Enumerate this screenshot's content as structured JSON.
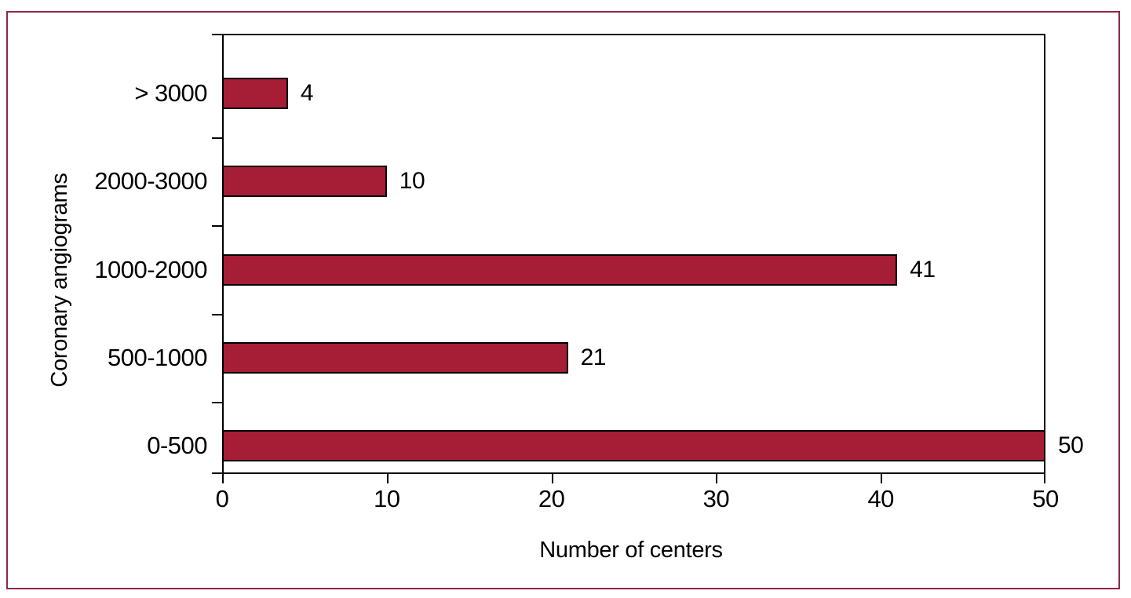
{
  "figure": {
    "frame_color": "#8E2845",
    "background": "#FFFFFF"
  },
  "chart_data": {
    "type": "bar",
    "orientation": "horizontal",
    "categories": [
      "> 3000",
      "2000-3000",
      "1000-2000",
      "500-1000",
      "0-500"
    ],
    "values": [
      4,
      10,
      41,
      21,
      50
    ],
    "data_labels": [
      "4",
      "10",
      "41",
      "21",
      "50"
    ],
    "xlabel": "Number of centers",
    "ylabel": "Coronary angiograms",
    "xlim": [
      0,
      50
    ],
    "x_ticks": [
      0,
      10,
      20,
      30,
      40,
      50
    ],
    "bar_color": "#A51E36",
    "bar_border_color": "#000000",
    "axis_color": "#000000",
    "grid": false
  }
}
